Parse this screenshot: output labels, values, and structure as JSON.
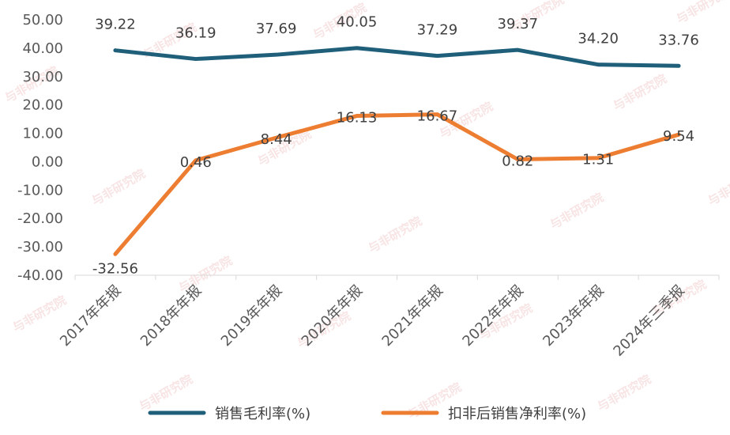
{
  "chart_data": {
    "type": "line",
    "categories": [
      "2017年年报",
      "2018年年报",
      "2019年年报",
      "2020年年报",
      "2021年年报",
      "2022年年报",
      "2023年年报",
      "2024年三季报"
    ],
    "series": [
      {
        "name": "销售毛利率(%)",
        "values": [
          39.22,
          36.19,
          37.69,
          40.05,
          37.29,
          39.37,
          34.2,
          33.76
        ],
        "labels": [
          "39.22",
          "36.19",
          "37.69",
          "40.05",
          "37.29",
          "39.37",
          "34.20",
          "33.76"
        ],
        "color": "#1f5f7a"
      },
      {
        "name": "扣非后销售净利率(%)",
        "values": [
          -32.56,
          0.46,
          8.44,
          16.13,
          16.67,
          0.82,
          1.31,
          9.54
        ],
        "labels": [
          "-32.56",
          "0.46",
          "8.44",
          "16.13",
          "16.67",
          "0.82",
          "1.31",
          "9.54"
        ],
        "color": "#ed7d31"
      }
    ],
    "ylim": [
      -40,
      50
    ],
    "yticks": [
      "-40.00",
      "-30.00",
      "-20.00",
      "-10.00",
      "0.00",
      "10.00",
      "20.00",
      "30.00",
      "40.00",
      "50.00"
    ],
    "legend_position": "bottom",
    "grid": false
  },
  "watermark_text": "与非研究院"
}
